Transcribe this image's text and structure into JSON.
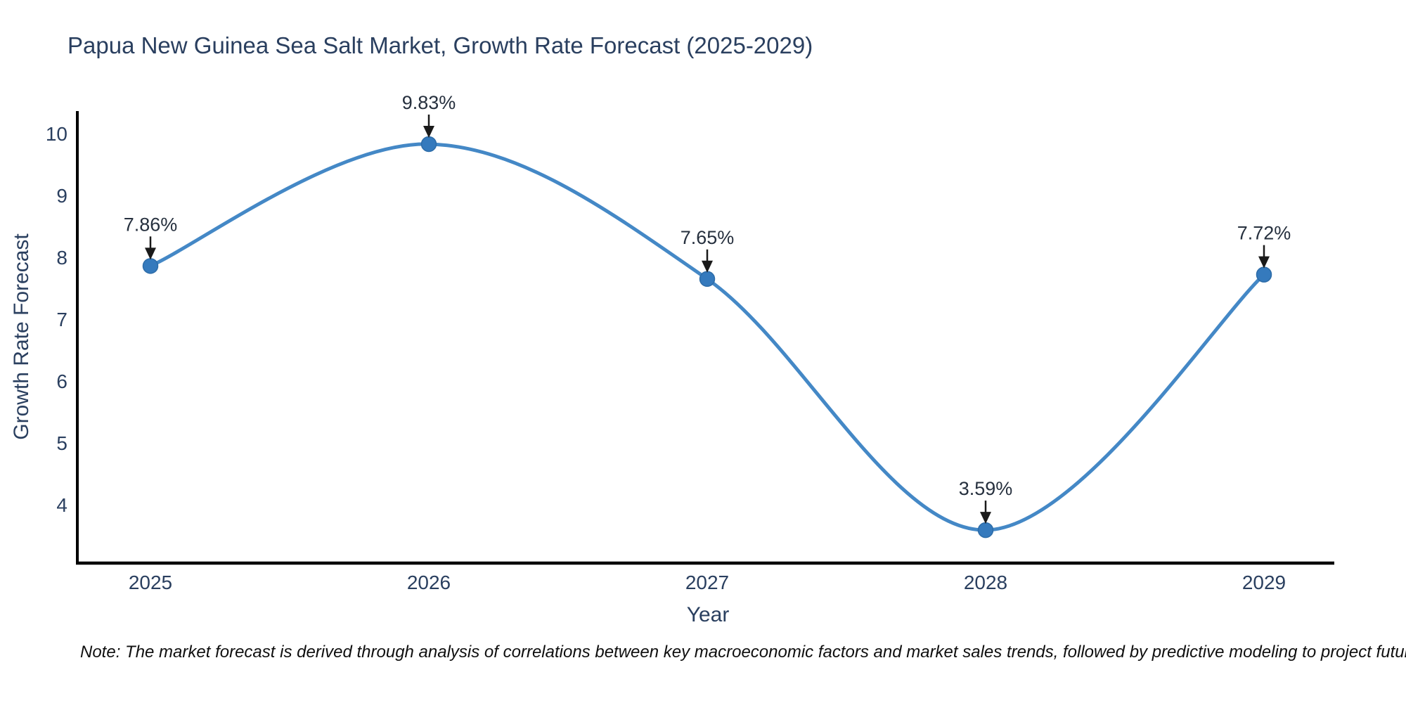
{
  "chart_data": {
    "type": "line",
    "title": "Papua New Guinea Sea Salt Market, Growth Rate Forecast (2025-2029)",
    "xlabel": "Year",
    "ylabel": "Growth Rate Forecast",
    "x": [
      2025,
      2026,
      2027,
      2028,
      2029
    ],
    "series": [
      {
        "name": "Growth Rate Forecast",
        "values": [
          7.86,
          9.83,
          7.65,
          3.59,
          7.72
        ],
        "point_labels": [
          "7.86%",
          "9.83%",
          "7.65%",
          "3.59%",
          "7.72%"
        ]
      }
    ],
    "yticks": [
      4,
      5,
      6,
      7,
      8,
      9,
      10
    ],
    "ylim": [
      3.05,
      10.36
    ],
    "grid": false,
    "legend_position": "none",
    "line_style": "spline",
    "marker": "circle",
    "annotation_arrows": true,
    "colors": {
      "line": "#4488c6",
      "marker_fill": "#357abd",
      "marker_edge": "#2d6ca8",
      "axis_line": "#000000",
      "axis_text": "#2a3f5f",
      "annotation_text": "#26303e",
      "annotation_arrow": "#1a1a1a",
      "background": "#ffffff"
    }
  },
  "footnote": "Note: The market forecast is derived through analysis of correlations between key macroeconomic factors and market sales trends, followed by predictive modeling to project future sales"
}
